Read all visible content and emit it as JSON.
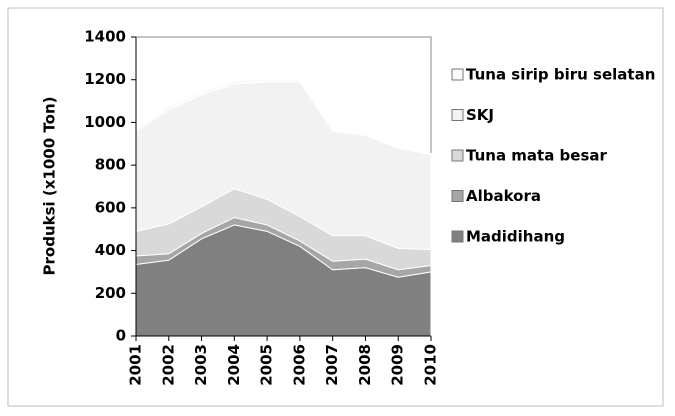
{
  "chart_data": {
    "type": "stacked-area",
    "y_label": "Produksi (x1000 Ton)",
    "categories": [
      "2001",
      "2002",
      "2003",
      "2004",
      "2005",
      "2006",
      "2007",
      "2008",
      "2009",
      "2010"
    ],
    "series": [
      {
        "name": "Madidihang",
        "color": "#808080",
        "values": [
          335,
          355,
          455,
          520,
          490,
          420,
          310,
          320,
          275,
          300
        ]
      },
      {
        "name": "Albakora",
        "color": "#a6a6a6",
        "values": [
          40,
          30,
          25,
          35,
          30,
          25,
          40,
          40,
          35,
          30
        ]
      },
      {
        "name": "Tuna mata besar",
        "color": "#d9d9d9",
        "values": [
          115,
          140,
          125,
          135,
          120,
          115,
          120,
          110,
          100,
          75
        ]
      },
      {
        "name": "SKJ",
        "color": "#f2f2f2",
        "values": [
          470,
          535,
          525,
          490,
          550,
          630,
          490,
          470,
          470,
          445
        ]
      },
      {
        "name": "Tuna sirip biru selatan",
        "color": "#fafafa",
        "values": [
          10,
          15,
          15,
          15,
          15,
          10,
          5,
          5,
          5,
          5
        ]
      }
    ],
    "ylim": [
      0,
      1400
    ],
    "yticks": [
      0,
      200,
      400,
      600,
      800,
      1000,
      1200,
      1400
    ]
  }
}
